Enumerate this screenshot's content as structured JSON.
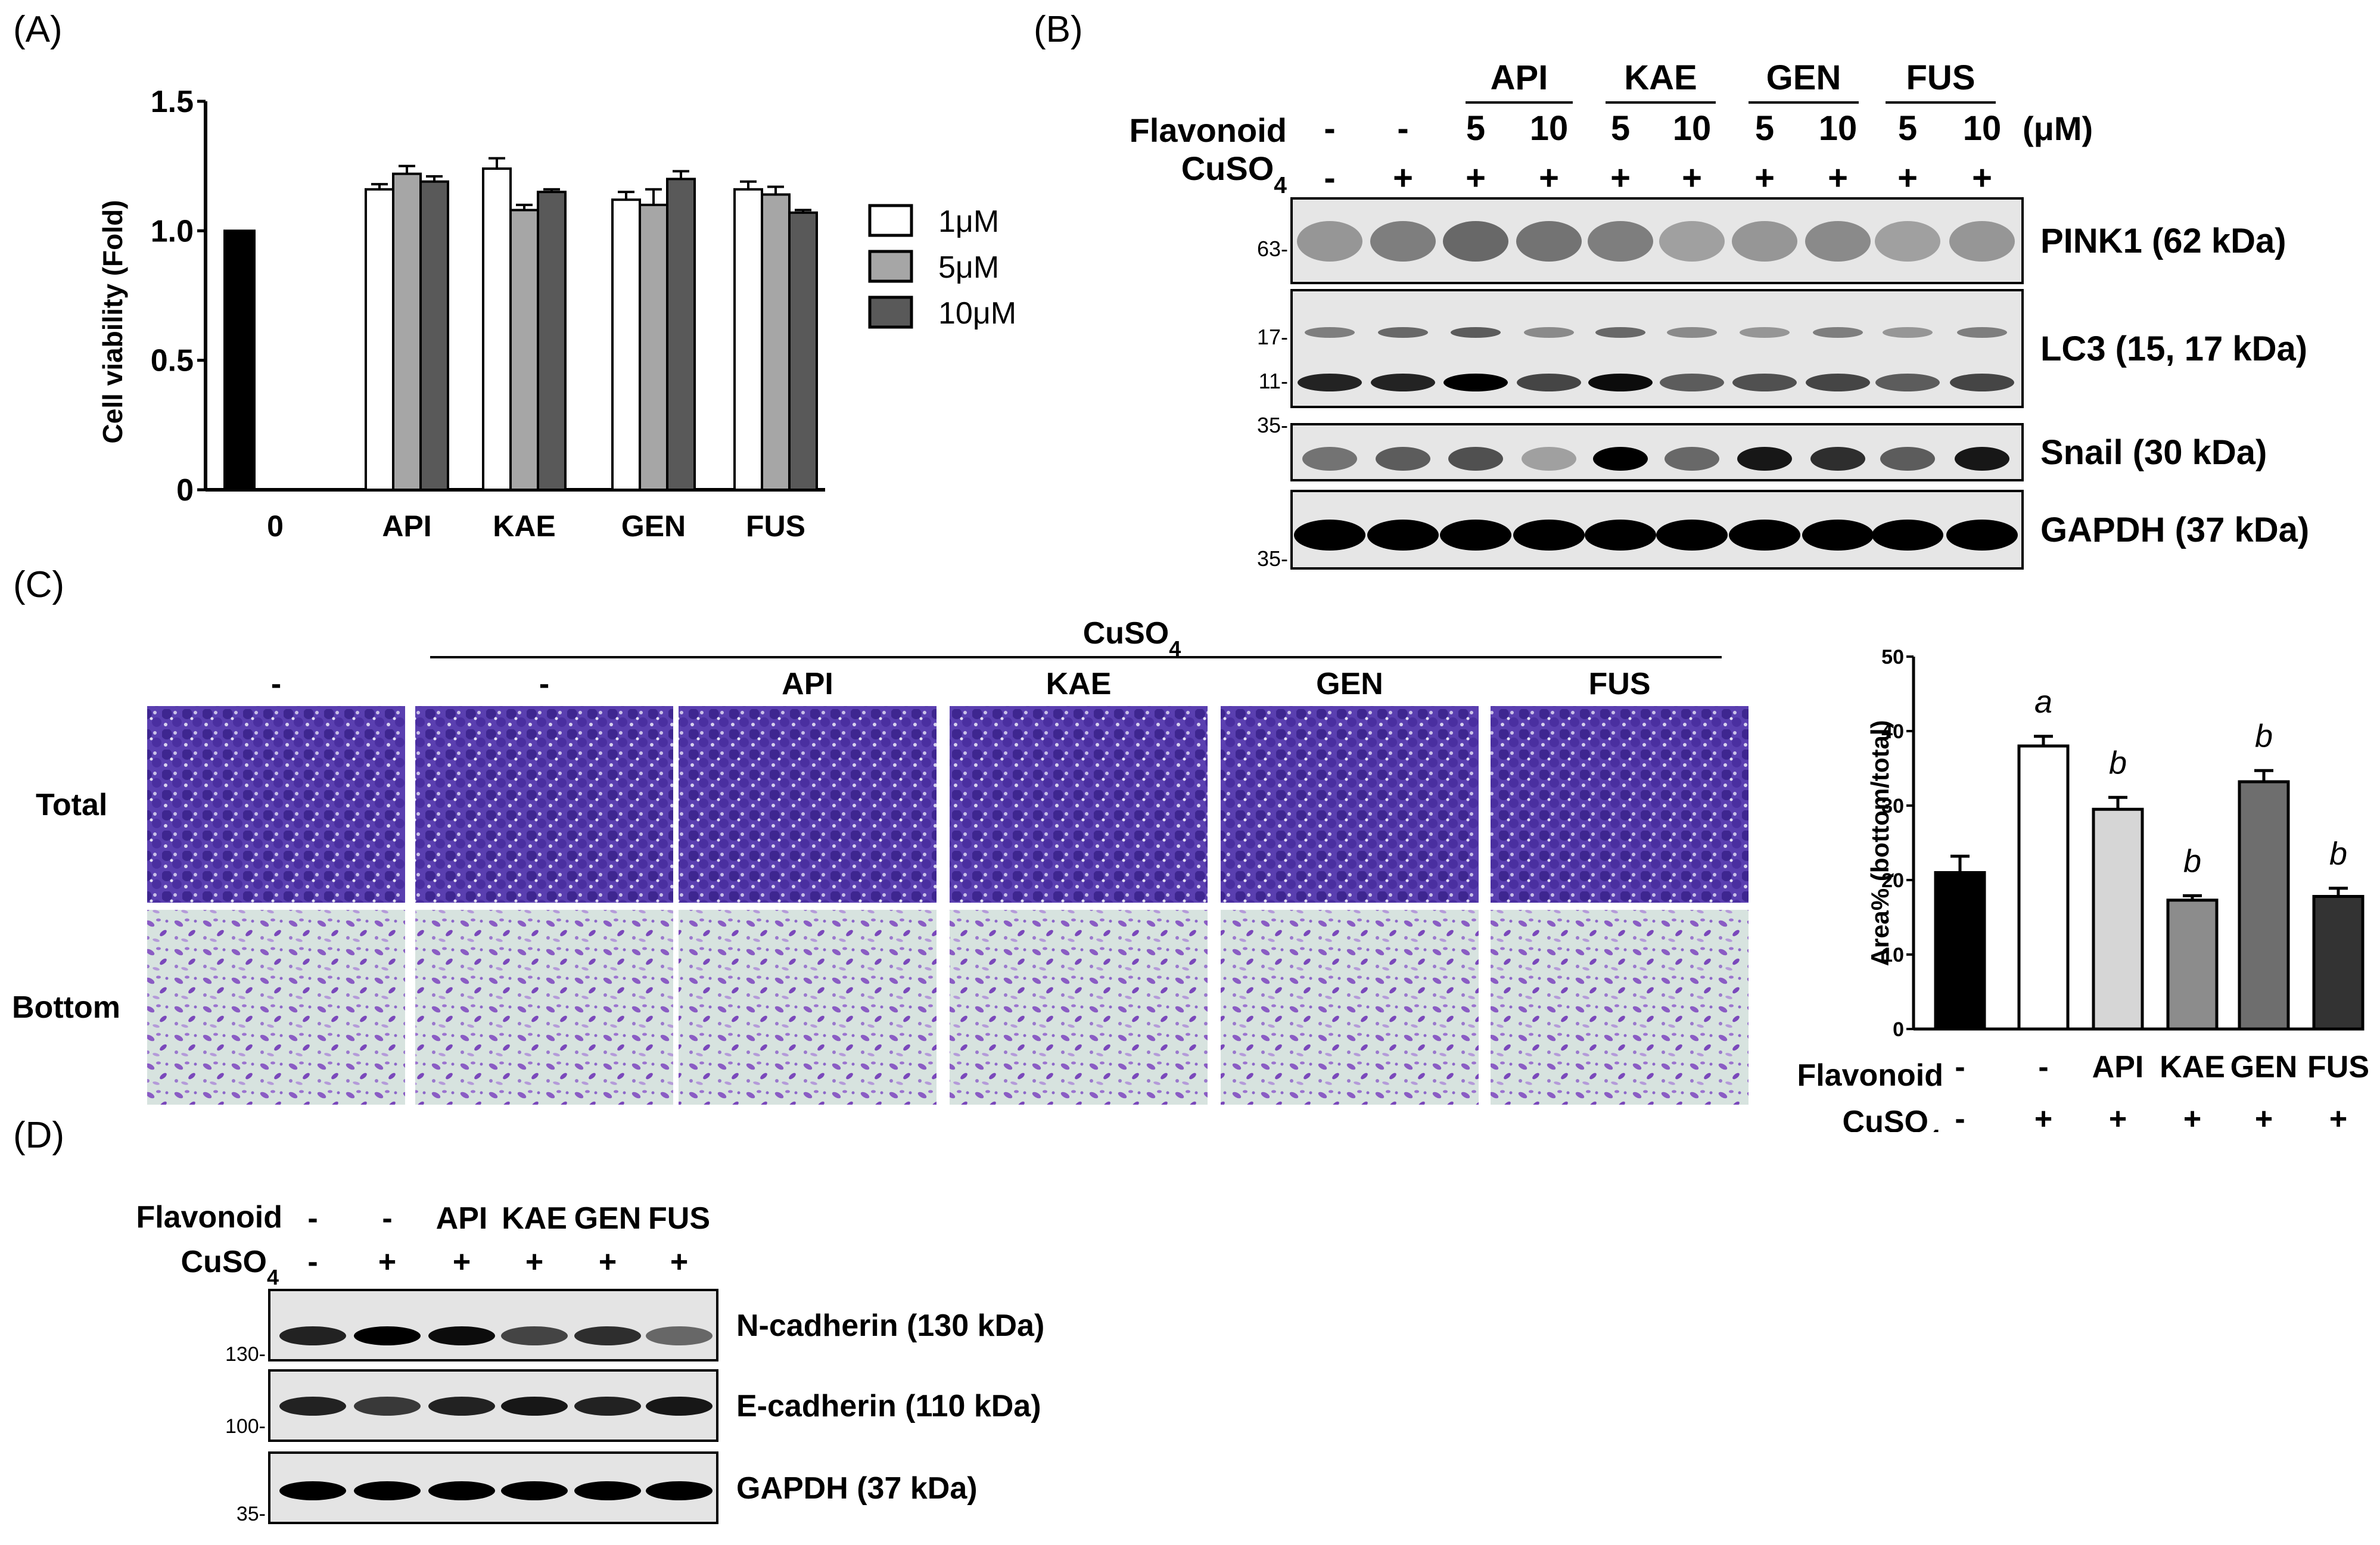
{
  "panels": {
    "A": {
      "label": "(A)"
    },
    "B": {
      "label": "(B)"
    },
    "C": {
      "label": "(C)"
    },
    "D": {
      "label": "(D)"
    }
  },
  "chart_data": [
    {
      "type": "bar",
      "panel": "A",
      "ylabel": "Cell viability (Fold)",
      "ylim": [
        0,
        1.5
      ],
      "yticks": [
        "0",
        "0.5",
        "1.0",
        "1.5"
      ],
      "categories": [
        "0",
        "API",
        "KAE",
        "GEN",
        "FUS"
      ],
      "series": [
        {
          "name": "1μM",
          "color": "#ffffff",
          "values": [
            1.0,
            1.16,
            1.24,
            1.12,
            1.16
          ]
        },
        {
          "name": "5μM",
          "color": "#a6a6a6",
          "values": [
            null,
            1.22,
            1.08,
            1.1,
            1.14
          ]
        },
        {
          "name": "10μM",
          "color": "#595959",
          "values": [
            null,
            1.19,
            1.15,
            1.2,
            1.07
          ]
        }
      ],
      "errors": [
        [
          0,
          0.02,
          0.04,
          0.03,
          0.03
        ],
        [
          null,
          0.03,
          0.02,
          0.06,
          0.03
        ],
        [
          null,
          0.02,
          0.01,
          0.03,
          0.01
        ]
      ],
      "control_color": "#000000",
      "legend": "right"
    },
    {
      "type": "bar",
      "panel": "C",
      "ylabel": "Area% (bottom/total)",
      "ylim": [
        0,
        50
      ],
      "yticks": [
        "0",
        "10",
        "20",
        "30",
        "40",
        "50"
      ],
      "categories": [
        "1",
        "2",
        "3",
        "4",
        "5",
        "6"
      ],
      "values": [
        21,
        38,
        29.5,
        17.3,
        33.2,
        17.8
      ],
      "errors": [
        2.2,
        1.3,
        1.6,
        0.6,
        1.5,
        1.1
      ],
      "colors": [
        "#000000",
        "#ffffff",
        "#d6d6d6",
        "#8c8c8c",
        "#6e6e6e",
        "#333333"
      ],
      "sig": [
        "",
        "a",
        "b",
        "b",
        "b",
        "b"
      ],
      "row_labels": {
        "flavonoid": "Flavonoid",
        "cuso4": "CuSO4"
      },
      "flavonoid_row": [
        "-",
        "-",
        "API",
        "KAE",
        "GEN",
        "FUS"
      ],
      "cuso4_row": [
        "-",
        "+",
        "+",
        "+",
        "+",
        "+"
      ]
    }
  ],
  "blotB": {
    "groups": [
      "API",
      "KAE",
      "GEN",
      "FUS"
    ],
    "flavonoid_label": "Flavonoid",
    "cuso4_label": "CuSO",
    "cuso4_sub": "4",
    "unit": "(μM)",
    "flavonoid_row": [
      "-",
      "-",
      "5",
      "10",
      "5",
      "10",
      "5",
      "10",
      "5",
      "10"
    ],
    "cuso4_row": [
      "-",
      "+",
      "+",
      "+",
      "+",
      "+",
      "+",
      "+",
      "+",
      "+"
    ],
    "bands": [
      {
        "label": "PINK1 (62 kDa)",
        "markers": [
          "63-"
        ]
      },
      {
        "label": "LC3 (15, 17 kDa)",
        "markers": [
          "17-",
          "11-"
        ]
      },
      {
        "label": "Snail (30 kDa)",
        "markers": [
          "35-"
        ]
      },
      {
        "label": "GAPDH (37 kDa)",
        "markers": [
          "35-"
        ]
      }
    ]
  },
  "panelC": {
    "cuso4_label": "CuSO",
    "cuso4_sub": "4",
    "columns": [
      "-",
      "-",
      "API",
      "KAE",
      "GEN",
      "FUS"
    ],
    "rows": [
      "Total",
      "Bottom"
    ]
  },
  "blotD": {
    "flavonoid_label": "Flavonoid",
    "cuso4_label": "CuSO",
    "cuso4_sub": "4",
    "flavonoid_row": [
      "-",
      "-",
      "API",
      "KAE",
      "GEN",
      "FUS"
    ],
    "cuso4_row": [
      "-",
      "+",
      "+",
      "+",
      "+",
      "+"
    ],
    "bands": [
      {
        "label": "N-cadherin (130 kDa)",
        "marker": "130-"
      },
      {
        "label": "E-cadherin (110 kDa)",
        "marker": "100-"
      },
      {
        "label": "GAPDH (37 kDa)",
        "marker": "35-"
      }
    ]
  }
}
